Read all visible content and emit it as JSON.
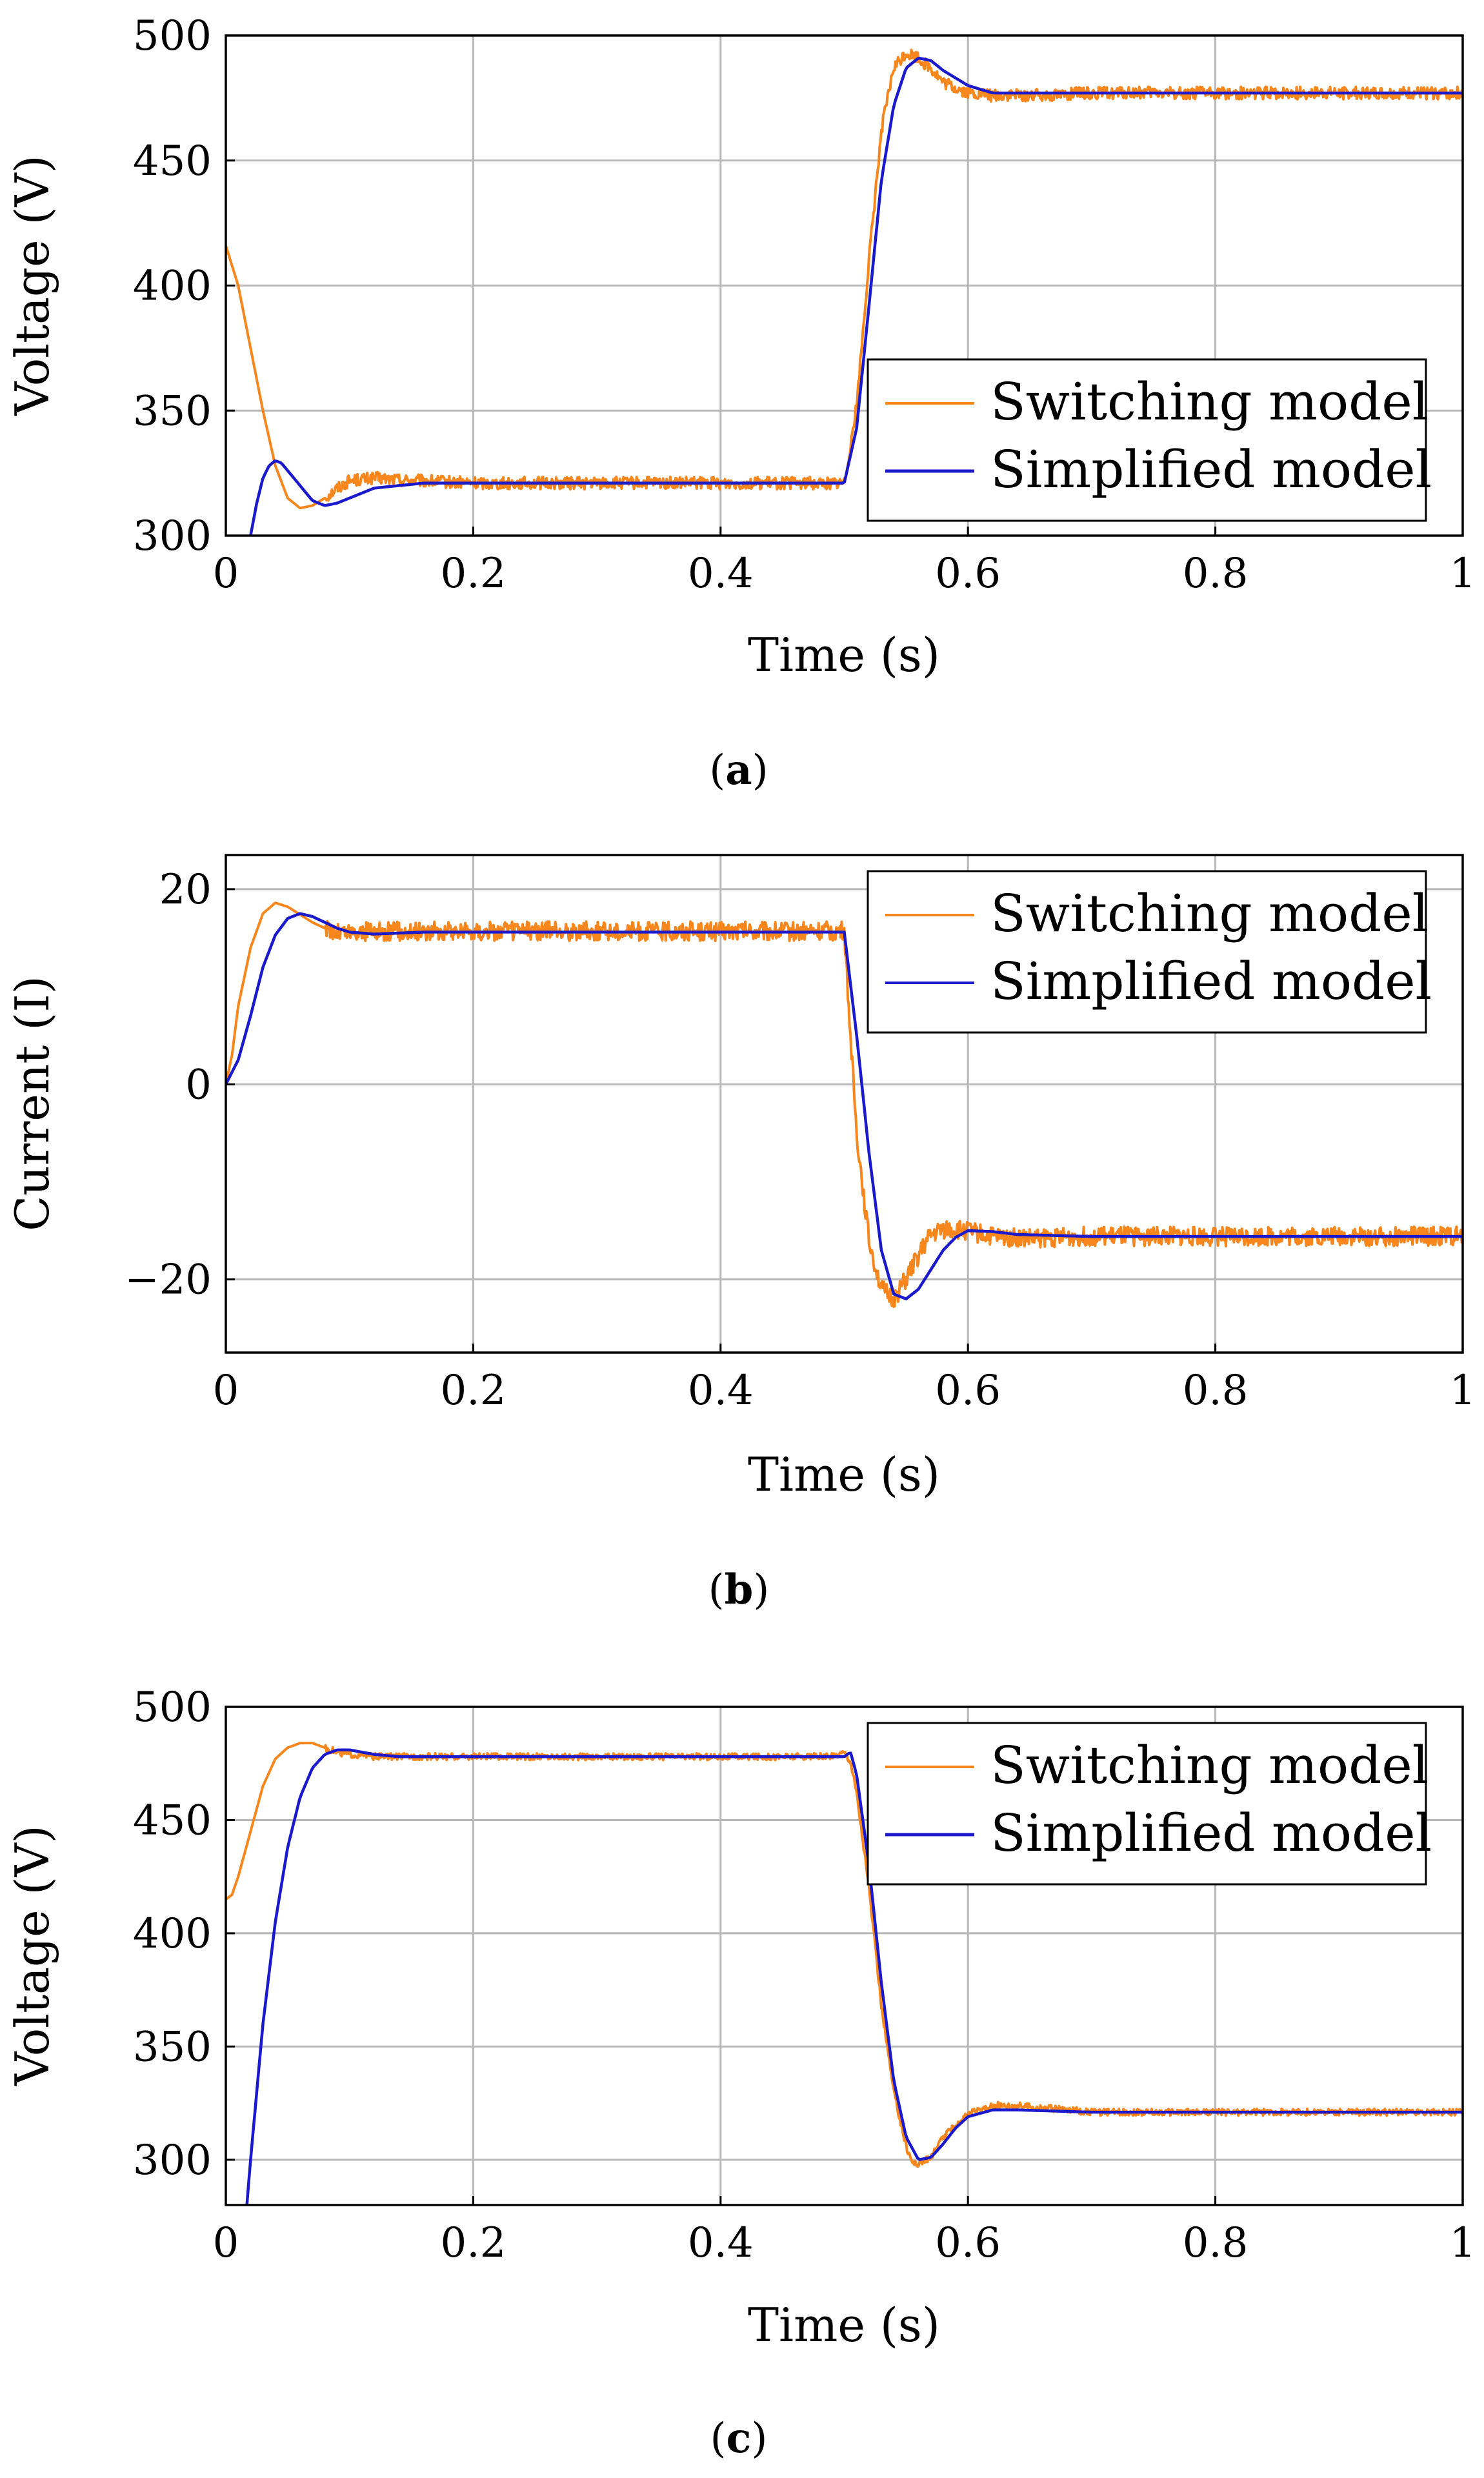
{
  "figure": {
    "panels": [
      {
        "caption_open": "(",
        "caption_letter": "a",
        "caption_close": ")"
      },
      {
        "caption_open": "(",
        "caption_letter": "b",
        "caption_close": ")"
      },
      {
        "caption_open": "(",
        "caption_letter": "c",
        "caption_close": ")"
      }
    ]
  },
  "colors": {
    "switching": "#f7861c",
    "simplified": "#1a1acc"
  },
  "chart_data": [
    {
      "type": "line",
      "title": "",
      "xlabel": "Time (s)",
      "ylabel": "Voltage (V)",
      "xlim": [
        0,
        1
      ],
      "ylim": [
        300,
        500
      ],
      "xticks": [
        0,
        0.2,
        0.4,
        0.6,
        0.8,
        1
      ],
      "xtick_labels": [
        "0",
        "0.2",
        "0.4",
        "0.6",
        "0.8",
        "1"
      ],
      "yticks": [
        300,
        350,
        400,
        450,
        500
      ],
      "ytick_labels": [
        "300",
        "350",
        "400",
        "450",
        "500"
      ],
      "grid": true,
      "legend_position": "right",
      "series": [
        {
          "name": "Switching model",
          "color": "#f7861c",
          "noise": 2.5,
          "x": [
            0,
            0.01,
            0.02,
            0.03,
            0.04,
            0.05,
            0.06,
            0.07,
            0.08,
            0.09,
            0.1,
            0.12,
            0.15,
            0.2,
            0.3,
            0.4,
            0.49,
            0.5,
            0.51,
            0.52,
            0.53,
            0.54,
            0.55,
            0.56,
            0.57,
            0.58,
            0.6,
            0.62,
            0.65,
            0.7,
            0.8,
            0.9,
            1.0
          ],
          "y": [
            416,
            400,
            375,
            350,
            328,
            315,
            311,
            312,
            315,
            319,
            322,
            323,
            322,
            321,
            321,
            321,
            321,
            321,
            352,
            410,
            462,
            487,
            493,
            491,
            487,
            481,
            477,
            476,
            476,
            477,
            477,
            477,
            477
          ]
        },
        {
          "name": "Simplified model",
          "color": "#1a1acc",
          "noise": 0,
          "x": [
            0.02,
            0.025,
            0.03,
            0.035,
            0.04,
            0.045,
            0.05,
            0.06,
            0.07,
            0.08,
            0.09,
            0.1,
            0.11,
            0.12,
            0.14,
            0.16,
            0.2,
            0.3,
            0.4,
            0.5,
            0.51,
            0.52,
            0.53,
            0.54,
            0.55,
            0.56,
            0.57,
            0.58,
            0.6,
            0.62,
            0.65,
            0.7,
            0.8,
            0.9,
            1.0
          ],
          "y": [
            300,
            313,
            323,
            328,
            330,
            329,
            326,
            320,
            314,
            312,
            313,
            315,
            317,
            319,
            320,
            321,
            321,
            321,
            321,
            321,
            343,
            392,
            442,
            472,
            487,
            491,
            490,
            486,
            480,
            477,
            477,
            477,
            477,
            477,
            477
          ]
        }
      ]
    },
    {
      "type": "line",
      "title": "",
      "xlabel": "Time (s)",
      "ylabel": "Current (I)",
      "xlim": [
        0,
        1
      ],
      "ylim": [
        -27.5,
        23.5
      ],
      "xticks": [
        0,
        0.2,
        0.4,
        0.6,
        0.8,
        1
      ],
      "xtick_labels": [
        "0",
        "0.2",
        "0.4",
        "0.6",
        "0.8",
        "1"
      ],
      "yticks": [
        -20,
        0,
        20
      ],
      "ytick_labels": [
        "−20",
        "0",
        "20"
      ],
      "grid": true,
      "legend_position": "top-right",
      "series": [
        {
          "name": "Switching model",
          "color": "#f7861c",
          "noise": 1.0,
          "x": [
            0,
            0.005,
            0.01,
            0.02,
            0.03,
            0.04,
            0.05,
            0.06,
            0.07,
            0.08,
            0.09,
            0.1,
            0.12,
            0.15,
            0.2,
            0.3,
            0.4,
            0.5,
            0.505,
            0.51,
            0.52,
            0.53,
            0.54,
            0.55,
            0.56,
            0.57,
            0.58,
            0.6,
            0.62,
            0.65,
            0.7,
            0.8,
            0.9,
            1.0
          ],
          "y": [
            0,
            3,
            8,
            14,
            17.5,
            18.6,
            18.2,
            17.4,
            16.6,
            16.0,
            15.6,
            15.5,
            15.7,
            15.7,
            15.7,
            15.7,
            15.7,
            15.7,
            5,
            -5,
            -16,
            -21,
            -22,
            -20,
            -17.5,
            -15.5,
            -14.8,
            -15,
            -15.6,
            -15.8,
            -15.6,
            -15.6,
            -15.6,
            -15.6
          ]
        },
        {
          "name": "Simplified model",
          "color": "#1a1acc",
          "noise": 0,
          "x": [
            0,
            0.01,
            0.02,
            0.03,
            0.04,
            0.05,
            0.06,
            0.07,
            0.08,
            0.09,
            0.1,
            0.12,
            0.14,
            0.16,
            0.2,
            0.3,
            0.4,
            0.5,
            0.51,
            0.52,
            0.53,
            0.54,
            0.55,
            0.56,
            0.57,
            0.58,
            0.59,
            0.6,
            0.62,
            0.64,
            0.7,
            0.8,
            0.9,
            1.0
          ],
          "y": [
            0,
            2.5,
            7,
            12,
            15.3,
            17,
            17.5,
            17.2,
            16.6,
            16.0,
            15.6,
            15.4,
            15.5,
            15.6,
            15.6,
            15.6,
            15.6,
            15.6,
            5,
            -7,
            -17,
            -21.5,
            -22,
            -21,
            -19,
            -17,
            -15.7,
            -15.0,
            -15.1,
            -15.4,
            -15.6,
            -15.6,
            -15.6,
            -15.6
          ]
        }
      ]
    },
    {
      "type": "line",
      "title": "",
      "xlabel": "Time (s)",
      "ylabel": "Voltage (V)",
      "xlim": [
        0,
        1
      ],
      "ylim": [
        280,
        500
      ],
      "xticks": [
        0,
        0.2,
        0.4,
        0.6,
        0.8,
        1
      ],
      "xtick_labels": [
        "0",
        "0.2",
        "0.4",
        "0.6",
        "0.8",
        "1"
      ],
      "yticks": [
        300,
        350,
        400,
        450,
        500
      ],
      "ytick_labels": [
        "300",
        "350",
        "400",
        "450",
        "500"
      ],
      "grid": true,
      "legend_position": "top-right",
      "series": [
        {
          "name": "Switching model",
          "color": "#f7861c",
          "noise": 1.5,
          "x": [
            0,
            0.005,
            0.01,
            0.02,
            0.03,
            0.04,
            0.05,
            0.06,
            0.07,
            0.08,
            0.09,
            0.1,
            0.12,
            0.15,
            0.2,
            0.3,
            0.4,
            0.49,
            0.5,
            0.505,
            0.51,
            0.52,
            0.53,
            0.54,
            0.55,
            0.555,
            0.56,
            0.57,
            0.58,
            0.6,
            0.62,
            0.64,
            0.66,
            0.7,
            0.8,
            0.9,
            1.0
          ],
          "y": [
            415,
            417,
            425,
            445,
            465,
            477,
            482,
            484,
            484,
            482,
            480,
            479,
            478,
            478,
            478,
            478,
            478,
            478,
            480,
            476,
            462,
            420,
            368,
            330,
            306,
            299,
            298,
            301,
            310,
            320,
            324,
            324,
            323,
            321,
            321,
            321,
            321
          ]
        },
        {
          "name": "Simplified model",
          "color": "#1a1acc",
          "noise": 0,
          "x": [
            0.017,
            0.02,
            0.025,
            0.03,
            0.04,
            0.05,
            0.06,
            0.07,
            0.08,
            0.09,
            0.1,
            0.11,
            0.12,
            0.14,
            0.16,
            0.2,
            0.3,
            0.4,
            0.5,
            0.505,
            0.51,
            0.52,
            0.53,
            0.54,
            0.55,
            0.56,
            0.57,
            0.58,
            0.59,
            0.6,
            0.62,
            0.64,
            0.7,
            0.8,
            0.9,
            1.0
          ],
          "y": [
            280,
            300,
            330,
            360,
            405,
            438,
            460,
            473,
            479,
            481,
            481,
            480,
            479,
            478,
            478,
            478,
            478,
            478,
            478,
            480,
            470,
            430,
            378,
            335,
            310,
            300,
            301,
            307,
            314,
            319,
            322,
            322,
            321,
            321,
            321,
            321
          ]
        }
      ]
    }
  ]
}
